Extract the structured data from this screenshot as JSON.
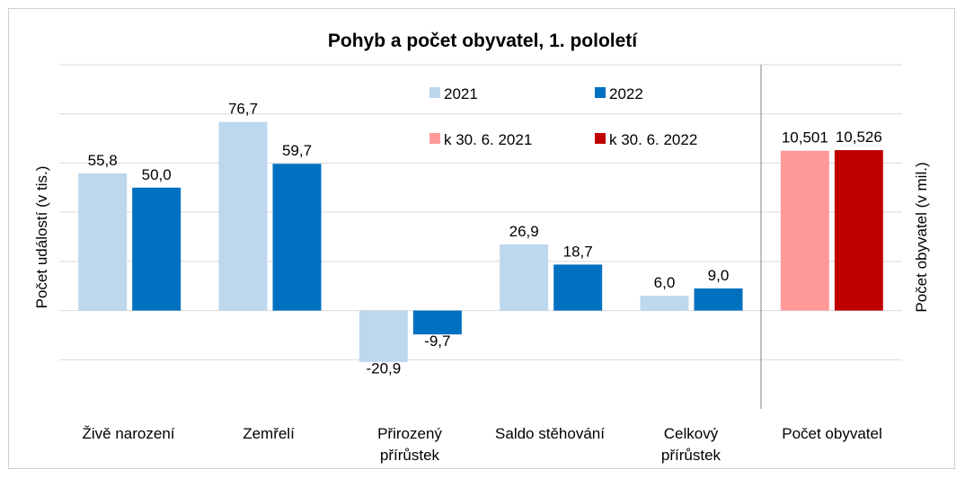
{
  "chart_data": {
    "type": "bar",
    "title": "Pohyb a počet obyvatel, 1. pololetí",
    "ylabel": "Počet událostí (v tis.)",
    "ylabel_right": "Počet obyvatel (v mil.)",
    "ylim": [
      -40,
      100
    ],
    "grid": true,
    "legend_position": "top-center",
    "categories": [
      "Živě narození",
      "Zemřelí",
      "Přirozený přírůstek",
      "Saldo stěhování",
      "Celkový přírůstek"
    ],
    "category_lines": [
      [
        "Živě narození"
      ],
      [
        "Zemřelí"
      ],
      [
        "Přirozený",
        "přírůstek"
      ],
      [
        "Saldo stěhování"
      ],
      [
        "Celkový",
        "přírůstek"
      ]
    ],
    "series": [
      {
        "name": "2021",
        "color": "#bdd7ee",
        "values": [
          55.8,
          76.7,
          -20.9,
          26.9,
          6.0
        ],
        "labels": [
          "55,8",
          "76,7",
          "-20,9",
          "26,9",
          "6,0"
        ]
      },
      {
        "name": "2022",
        "color": "#0070c0",
        "values": [
          50.0,
          59.7,
          -9.7,
          18.7,
          9.0
        ],
        "labels": [
          "50,0",
          "59,7",
          "-9,7",
          "18,7",
          "9,0"
        ]
      }
    ],
    "secondary": {
      "category": "Počet obyvatel",
      "ylim": [
        0,
        14
      ],
      "series": [
        {
          "name": "k 30. 6. 2021",
          "color": "#ff9999",
          "value": 10.501,
          "label": "10,501"
        },
        {
          "name": "k 30. 6. 2022",
          "color": "#c00000",
          "value": 10.526,
          "label": "10,526"
        }
      ]
    }
  }
}
